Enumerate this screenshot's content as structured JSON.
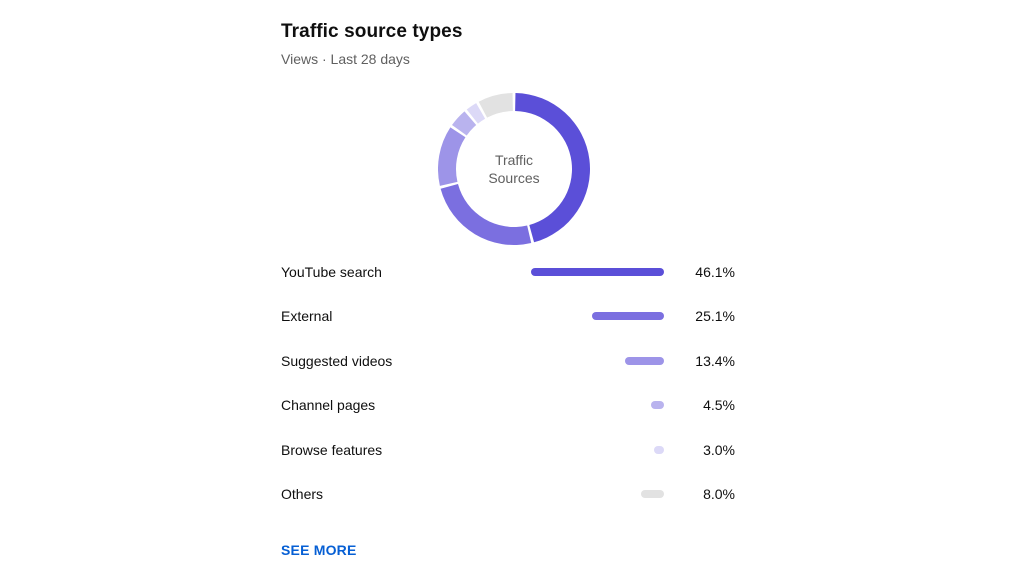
{
  "card": {
    "title": "Traffic source types",
    "subtitle": "Views · Last 28 days",
    "see_more_label": "SEE MORE"
  },
  "donut": {
    "center_line1": "Traffic",
    "center_line2": "Sources"
  },
  "chart_data": {
    "type": "pie",
    "title": "Traffic source types",
    "subtitle": "Views · Last 28 days",
    "center_label": "Traffic Sources",
    "categories": [
      "YouTube search",
      "External",
      "Suggested videos",
      "Channel pages",
      "Browse features",
      "Others"
    ],
    "values": [
      46.1,
      25.1,
      13.4,
      4.5,
      3.0,
      8.0
    ],
    "value_labels": [
      "46.1%",
      "25.1%",
      "13.4%",
      "4.5%",
      "3.0%",
      "8.0%"
    ],
    "unit": "%",
    "colors": [
      "#5b4fd8",
      "#7b6fe0",
      "#9d94e8",
      "#b9b3ee",
      "#dcd9f7",
      "#e2e2e2"
    ]
  }
}
